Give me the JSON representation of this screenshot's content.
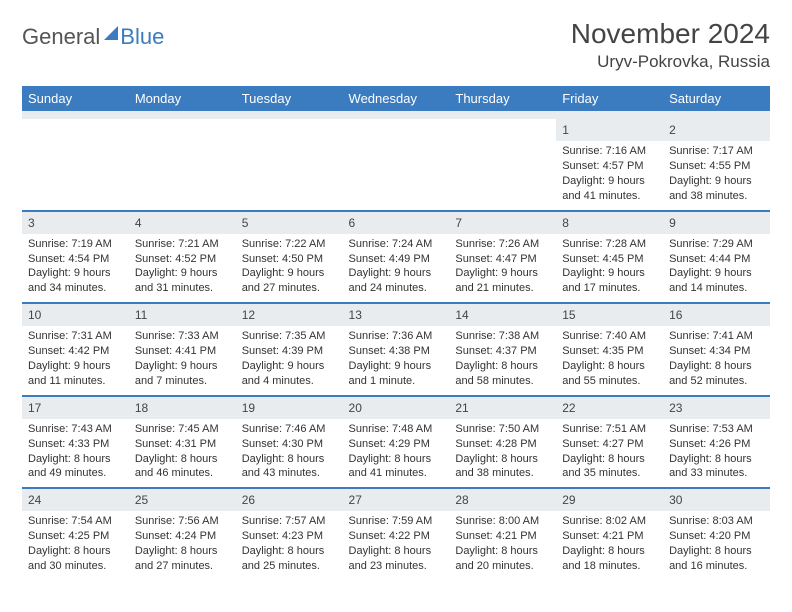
{
  "brand": {
    "word1": "General",
    "word2": "Blue"
  },
  "title": {
    "month": "November 2024",
    "location": "Uryv-Pokrovka, Russia"
  },
  "style": {
    "accent": "#3b7bbf",
    "header_bg": "#3b7bbf",
    "header_text": "#ffffff",
    "daynum_bg": "#e9ecef",
    "body_text": "#333333",
    "page_bg": "#ffffff",
    "month_fontsize": 28,
    "location_fontsize": 17,
    "dayheader_fontsize": 13,
    "cell_fontsize": 11
  },
  "calendar": {
    "day_headers": [
      "Sunday",
      "Monday",
      "Tuesday",
      "Wednesday",
      "Thursday",
      "Friday",
      "Saturday"
    ],
    "weeks": [
      [
        null,
        null,
        null,
        null,
        null,
        {
          "n": "1",
          "sr": "Sunrise: 7:16 AM",
          "ss": "Sunset: 4:57 PM",
          "d1": "Daylight: 9 hours",
          "d2": "and 41 minutes."
        },
        {
          "n": "2",
          "sr": "Sunrise: 7:17 AM",
          "ss": "Sunset: 4:55 PM",
          "d1": "Daylight: 9 hours",
          "d2": "and 38 minutes."
        }
      ],
      [
        {
          "n": "3",
          "sr": "Sunrise: 7:19 AM",
          "ss": "Sunset: 4:54 PM",
          "d1": "Daylight: 9 hours",
          "d2": "and 34 minutes."
        },
        {
          "n": "4",
          "sr": "Sunrise: 7:21 AM",
          "ss": "Sunset: 4:52 PM",
          "d1": "Daylight: 9 hours",
          "d2": "and 31 minutes."
        },
        {
          "n": "5",
          "sr": "Sunrise: 7:22 AM",
          "ss": "Sunset: 4:50 PM",
          "d1": "Daylight: 9 hours",
          "d2": "and 27 minutes."
        },
        {
          "n": "6",
          "sr": "Sunrise: 7:24 AM",
          "ss": "Sunset: 4:49 PM",
          "d1": "Daylight: 9 hours",
          "d2": "and 24 minutes."
        },
        {
          "n": "7",
          "sr": "Sunrise: 7:26 AM",
          "ss": "Sunset: 4:47 PM",
          "d1": "Daylight: 9 hours",
          "d2": "and 21 minutes."
        },
        {
          "n": "8",
          "sr": "Sunrise: 7:28 AM",
          "ss": "Sunset: 4:45 PM",
          "d1": "Daylight: 9 hours",
          "d2": "and 17 minutes."
        },
        {
          "n": "9",
          "sr": "Sunrise: 7:29 AM",
          "ss": "Sunset: 4:44 PM",
          "d1": "Daylight: 9 hours",
          "d2": "and 14 minutes."
        }
      ],
      [
        {
          "n": "10",
          "sr": "Sunrise: 7:31 AM",
          "ss": "Sunset: 4:42 PM",
          "d1": "Daylight: 9 hours",
          "d2": "and 11 minutes."
        },
        {
          "n": "11",
          "sr": "Sunrise: 7:33 AM",
          "ss": "Sunset: 4:41 PM",
          "d1": "Daylight: 9 hours",
          "d2": "and 7 minutes."
        },
        {
          "n": "12",
          "sr": "Sunrise: 7:35 AM",
          "ss": "Sunset: 4:39 PM",
          "d1": "Daylight: 9 hours",
          "d2": "and 4 minutes."
        },
        {
          "n": "13",
          "sr": "Sunrise: 7:36 AM",
          "ss": "Sunset: 4:38 PM",
          "d1": "Daylight: 9 hours",
          "d2": "and 1 minute."
        },
        {
          "n": "14",
          "sr": "Sunrise: 7:38 AM",
          "ss": "Sunset: 4:37 PM",
          "d1": "Daylight: 8 hours",
          "d2": "and 58 minutes."
        },
        {
          "n": "15",
          "sr": "Sunrise: 7:40 AM",
          "ss": "Sunset: 4:35 PM",
          "d1": "Daylight: 8 hours",
          "d2": "and 55 minutes."
        },
        {
          "n": "16",
          "sr": "Sunrise: 7:41 AM",
          "ss": "Sunset: 4:34 PM",
          "d1": "Daylight: 8 hours",
          "d2": "and 52 minutes."
        }
      ],
      [
        {
          "n": "17",
          "sr": "Sunrise: 7:43 AM",
          "ss": "Sunset: 4:33 PM",
          "d1": "Daylight: 8 hours",
          "d2": "and 49 minutes."
        },
        {
          "n": "18",
          "sr": "Sunrise: 7:45 AM",
          "ss": "Sunset: 4:31 PM",
          "d1": "Daylight: 8 hours",
          "d2": "and 46 minutes."
        },
        {
          "n": "19",
          "sr": "Sunrise: 7:46 AM",
          "ss": "Sunset: 4:30 PM",
          "d1": "Daylight: 8 hours",
          "d2": "and 43 minutes."
        },
        {
          "n": "20",
          "sr": "Sunrise: 7:48 AM",
          "ss": "Sunset: 4:29 PM",
          "d1": "Daylight: 8 hours",
          "d2": "and 41 minutes."
        },
        {
          "n": "21",
          "sr": "Sunrise: 7:50 AM",
          "ss": "Sunset: 4:28 PM",
          "d1": "Daylight: 8 hours",
          "d2": "and 38 minutes."
        },
        {
          "n": "22",
          "sr": "Sunrise: 7:51 AM",
          "ss": "Sunset: 4:27 PM",
          "d1": "Daylight: 8 hours",
          "d2": "and 35 minutes."
        },
        {
          "n": "23",
          "sr": "Sunrise: 7:53 AM",
          "ss": "Sunset: 4:26 PM",
          "d1": "Daylight: 8 hours",
          "d2": "and 33 minutes."
        }
      ],
      [
        {
          "n": "24",
          "sr": "Sunrise: 7:54 AM",
          "ss": "Sunset: 4:25 PM",
          "d1": "Daylight: 8 hours",
          "d2": "and 30 minutes."
        },
        {
          "n": "25",
          "sr": "Sunrise: 7:56 AM",
          "ss": "Sunset: 4:24 PM",
          "d1": "Daylight: 8 hours",
          "d2": "and 27 minutes."
        },
        {
          "n": "26",
          "sr": "Sunrise: 7:57 AM",
          "ss": "Sunset: 4:23 PM",
          "d1": "Daylight: 8 hours",
          "d2": "and 25 minutes."
        },
        {
          "n": "27",
          "sr": "Sunrise: 7:59 AM",
          "ss": "Sunset: 4:22 PM",
          "d1": "Daylight: 8 hours",
          "d2": "and 23 minutes."
        },
        {
          "n": "28",
          "sr": "Sunrise: 8:00 AM",
          "ss": "Sunset: 4:21 PM",
          "d1": "Daylight: 8 hours",
          "d2": "and 20 minutes."
        },
        {
          "n": "29",
          "sr": "Sunrise: 8:02 AM",
          "ss": "Sunset: 4:21 PM",
          "d1": "Daylight: 8 hours",
          "d2": "and 18 minutes."
        },
        {
          "n": "30",
          "sr": "Sunrise: 8:03 AM",
          "ss": "Sunset: 4:20 PM",
          "d1": "Daylight: 8 hours",
          "d2": "and 16 minutes."
        }
      ]
    ]
  }
}
